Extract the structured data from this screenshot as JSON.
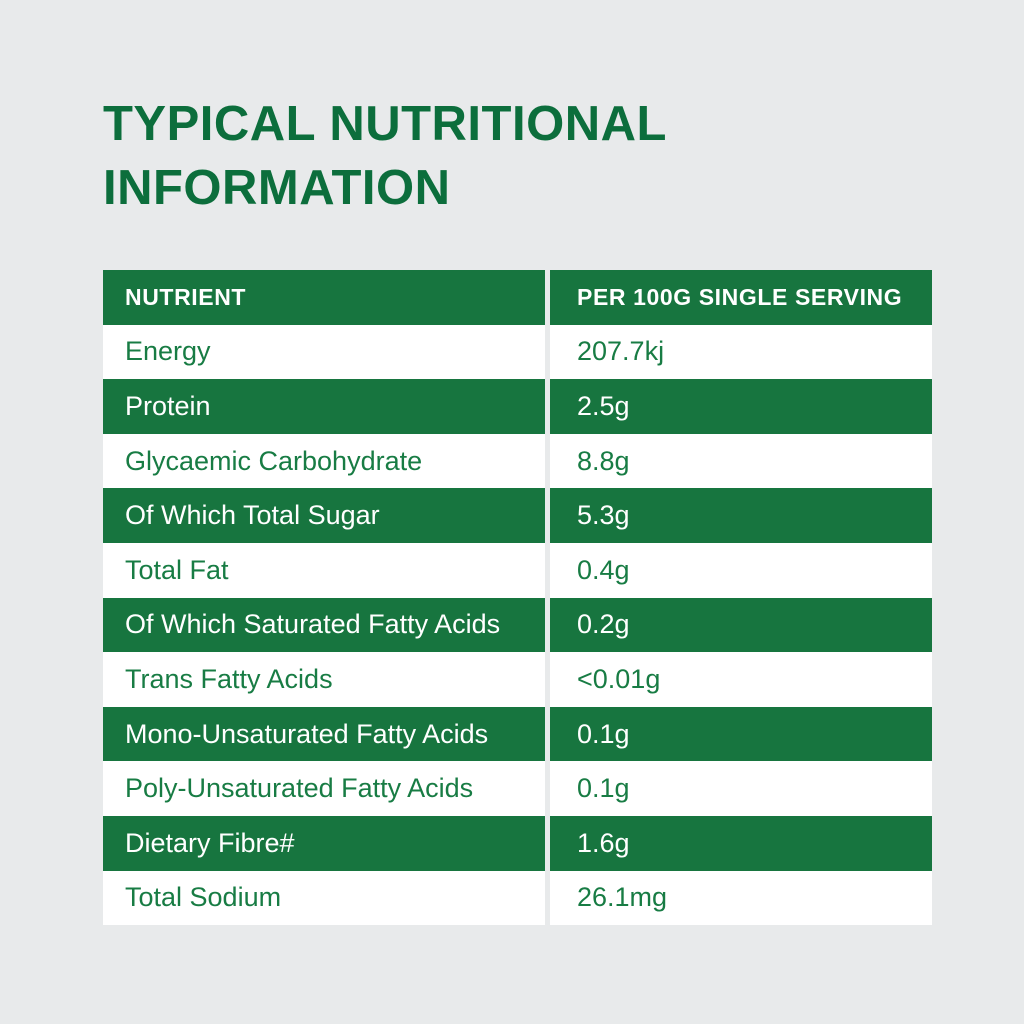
{
  "colors": {
    "page_background": "#E8EAEB",
    "table_green": "#17753F",
    "title_green": "#0C6E3C",
    "row_text_green": "#187C44",
    "white": "#FFFFFF"
  },
  "title": {
    "line1": "TYPICAL NUTRITIONAL",
    "line2": "INFORMATION"
  },
  "table": {
    "header": {
      "nutrient": "NUTRIENT",
      "per_serving": "PER 100G SINGLE SERVING"
    },
    "rows": [
      {
        "nutrient": "Energy",
        "value": "207.7kj",
        "variant": "light"
      },
      {
        "nutrient": "Protein",
        "value": "2.5g",
        "variant": "green"
      },
      {
        "nutrient": "Glycaemic Carbohydrate",
        "value": "8.8g",
        "variant": "light"
      },
      {
        "nutrient": "Of Which Total Sugar",
        "value": "5.3g",
        "variant": "green"
      },
      {
        "nutrient": "Total Fat",
        "value": "0.4g",
        "variant": "light"
      },
      {
        "nutrient": "Of Which Saturated Fatty Acids",
        "value": "0.2g",
        "variant": "green"
      },
      {
        "nutrient": "Trans Fatty Acids",
        "value": "<0.01g",
        "variant": "light"
      },
      {
        "nutrient": "Mono-Unsaturated Fatty Acids",
        "value": "0.1g",
        "variant": "green"
      },
      {
        "nutrient": "Poly-Unsaturated Fatty Acids",
        "value": "0.1g",
        "variant": "light"
      },
      {
        "nutrient": "Dietary Fibre#",
        "value": "1.6g",
        "variant": "green"
      },
      {
        "nutrient": "Total Sodium",
        "value": "26.1mg",
        "variant": "light"
      }
    ]
  }
}
